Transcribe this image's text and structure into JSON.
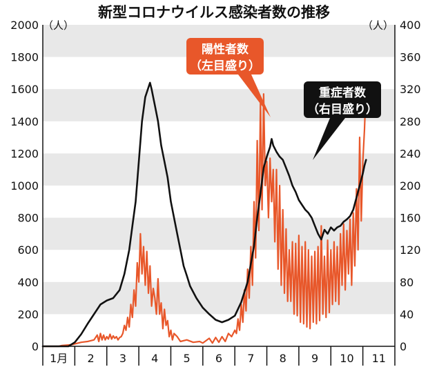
{
  "chart_data": {
    "type": "line",
    "title": "新型コロナウイルス感染者数の推移",
    "left_unit": "（人）",
    "right_unit": "（人）",
    "y_left": {
      "min": 0,
      "max": 2000,
      "ticks": [
        0,
        200,
        400,
        600,
        800,
        1000,
        1200,
        1400,
        1600,
        1800,
        2000
      ]
    },
    "y_right": {
      "min": 0,
      "max": 400,
      "ticks": [
        0,
        40,
        80,
        120,
        160,
        200,
        240,
        280,
        320,
        360,
        400
      ]
    },
    "x_labels": [
      "1月",
      "2",
      "3",
      "4",
      "5",
      "6",
      "7",
      "8",
      "9",
      "10",
      "11"
    ],
    "x_range": [
      1,
      12
    ],
    "grid": "alternating horizontal bands",
    "series": [
      {
        "name": "陽性者数（左目盛り）",
        "label_lines": [
          "陽性者数",
          "（左目盛り）"
        ],
        "axis": "left",
        "color": "#e8572a",
        "points": [
          [
            1.0,
            0
          ],
          [
            1.5,
            0
          ],
          [
            1.6,
            5
          ],
          [
            1.9,
            10
          ],
          [
            2.0,
            15
          ],
          [
            2.2,
            25
          ],
          [
            2.4,
            30
          ],
          [
            2.6,
            40
          ],
          [
            2.7,
            70
          ],
          [
            2.75,
            30
          ],
          [
            2.8,
            80
          ],
          [
            2.85,
            40
          ],
          [
            2.9,
            70
          ],
          [
            2.95,
            40
          ],
          [
            3.0,
            60
          ],
          [
            3.05,
            45
          ],
          [
            3.1,
            75
          ],
          [
            3.15,
            45
          ],
          [
            3.2,
            65
          ],
          [
            3.25,
            50
          ],
          [
            3.3,
            60
          ],
          [
            3.35,
            40
          ],
          [
            3.4,
            55
          ],
          [
            3.45,
            60
          ],
          [
            3.5,
            80
          ],
          [
            3.55,
            130
          ],
          [
            3.6,
            100
          ],
          [
            3.65,
            180
          ],
          [
            3.7,
            120
          ],
          [
            3.75,
            260
          ],
          [
            3.8,
            180
          ],
          [
            3.85,
            350
          ],
          [
            3.9,
            250
          ],
          [
            3.95,
            520
          ],
          [
            4.0,
            400
          ],
          [
            4.05,
            700
          ],
          [
            4.1,
            450
          ],
          [
            4.15,
            620
          ],
          [
            4.2,
            380
          ],
          [
            4.25,
            590
          ],
          [
            4.3,
            330
          ],
          [
            4.35,
            500
          ],
          [
            4.4,
            250
          ],
          [
            4.45,
            360
          ],
          [
            4.5,
            300
          ],
          [
            4.55,
            200
          ],
          [
            4.6,
            420
          ],
          [
            4.65,
            200
          ],
          [
            4.7,
            270
          ],
          [
            4.75,
            110
          ],
          [
            4.8,
            230
          ],
          [
            4.85,
            130
          ],
          [
            4.9,
            160
          ],
          [
            4.95,
            60
          ],
          [
            5.0,
            100
          ],
          [
            5.05,
            40
          ],
          [
            5.1,
            80
          ],
          [
            5.2,
            60
          ],
          [
            5.3,
            30
          ],
          [
            5.5,
            40
          ],
          [
            5.7,
            25
          ],
          [
            5.9,
            30
          ],
          [
            6.0,
            20
          ],
          [
            6.2,
            50
          ],
          [
            6.3,
            20
          ],
          [
            6.4,
            55
          ],
          [
            6.5,
            25
          ],
          [
            6.6,
            60
          ],
          [
            6.7,
            30
          ],
          [
            6.8,
            80
          ],
          [
            6.9,
            60
          ],
          [
            7.0,
            100
          ],
          [
            7.05,
            80
          ],
          [
            7.1,
            170
          ],
          [
            7.15,
            100
          ],
          [
            7.2,
            260
          ],
          [
            7.25,
            150
          ],
          [
            7.3,
            350
          ],
          [
            7.35,
            220
          ],
          [
            7.4,
            480
          ],
          [
            7.45,
            300
          ],
          [
            7.5,
            620
          ],
          [
            7.55,
            380
          ],
          [
            7.6,
            900
          ],
          [
            7.65,
            550
          ],
          [
            7.7,
            1280
          ],
          [
            7.75,
            720
          ],
          [
            7.8,
            1520
          ],
          [
            7.85,
            850
          ],
          [
            7.9,
            1570
          ],
          [
            7.95,
            1000
          ],
          [
            8.0,
            1150
          ],
          [
            8.05,
            800
          ],
          [
            8.1,
            1170
          ],
          [
            8.15,
            900
          ],
          [
            8.2,
            1100
          ],
          [
            8.25,
            650
          ],
          [
            8.3,
            1100
          ],
          [
            8.35,
            480
          ],
          [
            8.4,
            1000
          ],
          [
            8.45,
            380
          ],
          [
            8.5,
            850
          ],
          [
            8.55,
            330
          ],
          [
            8.6,
            730
          ],
          [
            8.65,
            280
          ],
          [
            8.7,
            600
          ],
          [
            8.75,
            280
          ],
          [
            8.8,
            650
          ],
          [
            8.85,
            200
          ],
          [
            8.9,
            640
          ],
          [
            8.95,
            190
          ],
          [
            9.0,
            690
          ],
          [
            9.05,
            150
          ],
          [
            9.1,
            620
          ],
          [
            9.15,
            140
          ],
          [
            9.2,
            650
          ],
          [
            9.25,
            120
          ],
          [
            9.3,
            600
          ],
          [
            9.35,
            110
          ],
          [
            9.4,
            560
          ],
          [
            9.45,
            150
          ],
          [
            9.5,
            590
          ],
          [
            9.55,
            140
          ],
          [
            9.6,
            620
          ],
          [
            9.65,
            160
          ],
          [
            9.7,
            750
          ],
          [
            9.75,
            200
          ],
          [
            9.8,
            560
          ],
          [
            9.85,
            180
          ],
          [
            9.9,
            660
          ],
          [
            9.95,
            210
          ],
          [
            10.0,
            600
          ],
          [
            10.05,
            260
          ],
          [
            10.1,
            650
          ],
          [
            10.15,
            280
          ],
          [
            10.2,
            620
          ],
          [
            10.25,
            260
          ],
          [
            10.3,
            700
          ],
          [
            10.35,
            380
          ],
          [
            10.4,
            760
          ],
          [
            10.45,
            350
          ],
          [
            10.5,
            720
          ],
          [
            10.55,
            450
          ],
          [
            10.6,
            790
          ],
          [
            10.65,
            380
          ],
          [
            10.7,
            830
          ],
          [
            10.75,
            500
          ],
          [
            10.8,
            980
          ],
          [
            10.85,
            600
          ],
          [
            10.9,
            1300
          ],
          [
            10.95,
            780
          ],
          [
            11.0,
            1150
          ],
          [
            11.05,
            1350
          ],
          [
            11.1,
            1620
          ]
        ]
      },
      {
        "name": "重症者数（右目盛り）",
        "label_lines": [
          "重症者数",
          "（右目盛り）"
        ],
        "axis": "right",
        "color": "#111111",
        "points": [
          [
            1.0,
            0
          ],
          [
            1.5,
            0
          ],
          [
            1.8,
            0
          ],
          [
            2.0,
            5
          ],
          [
            2.2,
            15
          ],
          [
            2.4,
            28
          ],
          [
            2.6,
            40
          ],
          [
            2.8,
            52
          ],
          [
            3.0,
            57
          ],
          [
            3.2,
            60
          ],
          [
            3.4,
            70
          ],
          [
            3.55,
            90
          ],
          [
            3.7,
            120
          ],
          [
            3.8,
            150
          ],
          [
            3.9,
            180
          ],
          [
            4.0,
            230
          ],
          [
            4.1,
            280
          ],
          [
            4.2,
            310
          ],
          [
            4.3,
            322
          ],
          [
            4.35,
            328
          ],
          [
            4.4,
            320
          ],
          [
            4.5,
            300
          ],
          [
            4.6,
            280
          ],
          [
            4.7,
            250
          ],
          [
            4.8,
            230
          ],
          [
            4.9,
            210
          ],
          [
            5.0,
            180
          ],
          [
            5.1,
            160
          ],
          [
            5.2,
            140
          ],
          [
            5.3,
            120
          ],
          [
            5.4,
            100
          ],
          [
            5.5,
            88
          ],
          [
            5.6,
            75
          ],
          [
            5.8,
            60
          ],
          [
            6.0,
            48
          ],
          [
            6.2,
            40
          ],
          [
            6.4,
            33
          ],
          [
            6.6,
            30
          ],
          [
            6.8,
            33
          ],
          [
            7.0,
            38
          ],
          [
            7.2,
            55
          ],
          [
            7.4,
            80
          ],
          [
            7.6,
            125
          ],
          [
            7.7,
            160
          ],
          [
            7.8,
            190
          ],
          [
            7.9,
            222
          ],
          [
            8.0,
            236
          ],
          [
            8.1,
            248
          ],
          [
            8.15,
            258
          ],
          [
            8.2,
            250
          ],
          [
            8.3,
            242
          ],
          [
            8.4,
            236
          ],
          [
            8.5,
            232
          ],
          [
            8.6,
            222
          ],
          [
            8.7,
            212
          ],
          [
            8.8,
            200
          ],
          [
            8.9,
            192
          ],
          [
            9.0,
            182
          ],
          [
            9.1,
            176
          ],
          [
            9.2,
            170
          ],
          [
            9.3,
            166
          ],
          [
            9.4,
            160
          ],
          [
            9.5,
            150
          ],
          [
            9.6,
            140
          ],
          [
            9.7,
            133
          ],
          [
            9.8,
            145
          ],
          [
            9.9,
            140
          ],
          [
            10.0,
            148
          ],
          [
            10.1,
            144
          ],
          [
            10.2,
            148
          ],
          [
            10.3,
            150
          ],
          [
            10.4,
            155
          ],
          [
            10.5,
            158
          ],
          [
            10.6,
            162
          ],
          [
            10.7,
            170
          ],
          [
            10.8,
            185
          ],
          [
            10.9,
            200
          ],
          [
            11.0,
            215
          ],
          [
            11.05,
            225
          ],
          [
            11.1,
            232
          ]
        ]
      }
    ]
  }
}
